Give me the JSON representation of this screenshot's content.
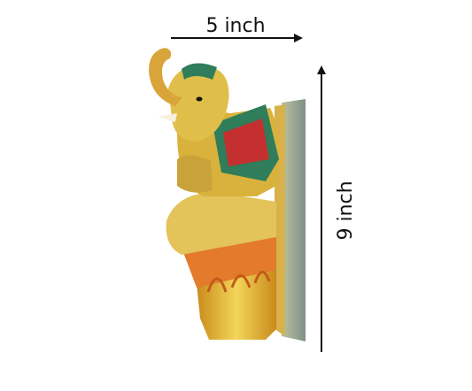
{
  "dimensions": {
    "width_label": "5 inch",
    "height_label": "9 inch"
  }
}
